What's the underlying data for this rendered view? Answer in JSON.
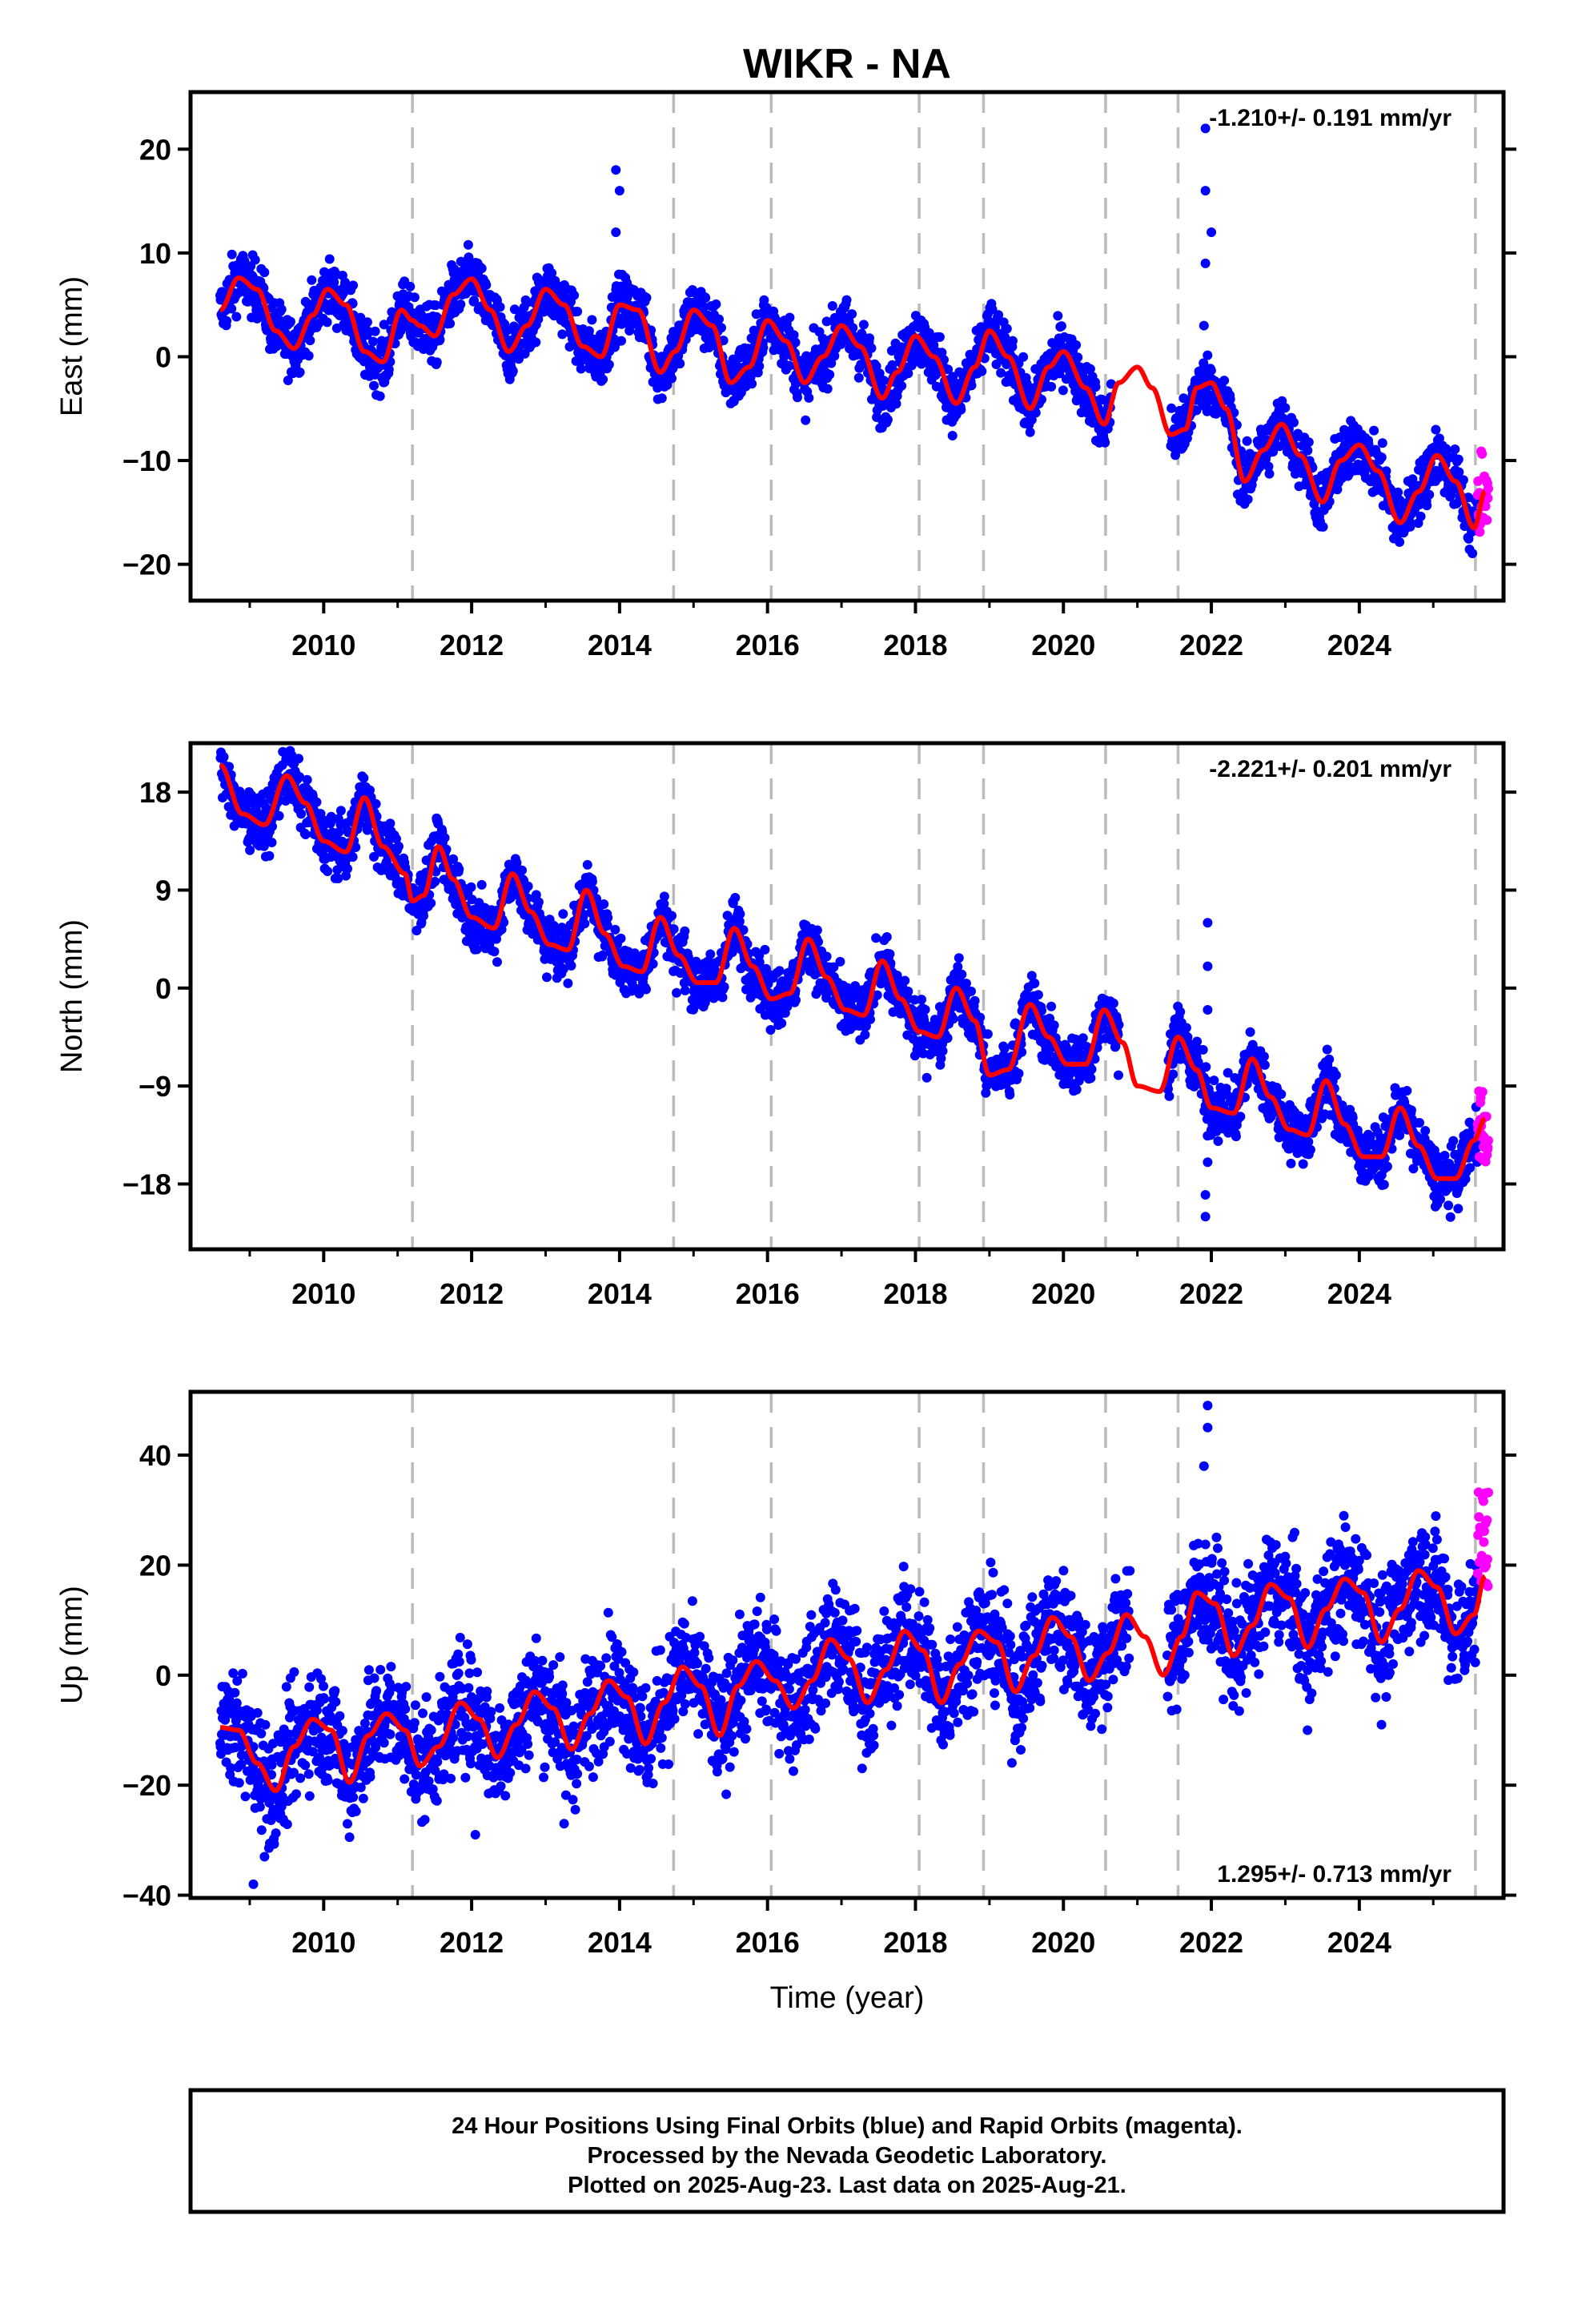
{
  "title": "WIKR - NA",
  "xlabel": "Time (year)",
  "colors": {
    "final": "#0000ff",
    "rapid": "#ff00ff",
    "model": "#ff0000",
    "steps": "#bbbbbb",
    "frame": "#000000"
  },
  "footer": [
    "24 Hour Positions Using Final Orbits (blue) and Rapid Orbits (magenta).",
    "Processed by the Nevada Geodetic Laboratory.",
    "Plotted on 2025-Aug-23. Last data on 2025-Aug-21."
  ],
  "chart_data": [
    {
      "type": "scatter",
      "ylabel": "East (mm)",
      "rate_label": "-1.210+/- 0.191 mm/yr",
      "xlim": [
        2008.2,
        2025.95
      ],
      "ylim": [
        -23.5,
        25.5
      ],
      "yticks": [
        -20,
        -10,
        0,
        10,
        20
      ],
      "xticks": [
        2010,
        2012,
        2014,
        2016,
        2018,
        2020,
        2022,
        2024
      ],
      "steps": [
        2011.2,
        2014.73,
        2016.05,
        2018.05,
        2018.92,
        2020.57,
        2021.55,
        2025.57
      ],
      "model": [
        [
          2008.6,
          4.5
        ],
        [
          2008.85,
          7.6
        ],
        [
          2009.1,
          6.5
        ],
        [
          2009.35,
          2.5
        ],
        [
          2009.6,
          0.8
        ],
        [
          2009.85,
          4
        ],
        [
          2010.05,
          6.5
        ],
        [
          2010.3,
          5
        ],
        [
          2010.55,
          0.5
        ],
        [
          2010.8,
          -0.5
        ],
        [
          2011.05,
          4.5
        ],
        [
          2011.2,
          3.5
        ],
        [
          2011.3,
          3
        ],
        [
          2011.5,
          2
        ],
        [
          2011.75,
          6
        ],
        [
          2012,
          7.5
        ],
        [
          2012.25,
          4.5
        ],
        [
          2012.5,
          0.5
        ],
        [
          2012.75,
          3
        ],
        [
          2013,
          6.5
        ],
        [
          2013.25,
          5
        ],
        [
          2013.5,
          1
        ],
        [
          2013.75,
          0
        ],
        [
          2014,
          5
        ],
        [
          2014.25,
          4.5
        ],
        [
          2014.55,
          -1.5
        ],
        [
          2014.75,
          0.5
        ],
        [
          2015,
          4.5
        ],
        [
          2015.25,
          3
        ],
        [
          2015.5,
          -2.5
        ],
        [
          2015.75,
          -1
        ],
        [
          2016,
          3.5
        ],
        [
          2016.25,
          1.5
        ],
        [
          2016.5,
          -2.5
        ],
        [
          2016.75,
          0
        ],
        [
          2017,
          3
        ],
        [
          2017.25,
          1
        ],
        [
          2017.55,
          -4
        ],
        [
          2017.75,
          -1.5
        ],
        [
          2018,
          2
        ],
        [
          2018.25,
          0
        ],
        [
          2018.55,
          -4.5
        ],
        [
          2018.8,
          -1
        ],
        [
          2019,
          2.5
        ],
        [
          2019.25,
          0
        ],
        [
          2019.55,
          -5
        ],
        [
          2019.8,
          -1
        ],
        [
          2020,
          0.5
        ],
        [
          2020.3,
          -3
        ],
        [
          2020.55,
          -6.5
        ],
        [
          2020.75,
          -2.5
        ],
        [
          2021,
          -1
        ],
        [
          2021.2,
          -3
        ],
        [
          2021.45,
          -7.5
        ],
        [
          2021.65,
          -7
        ],
        [
          2021.8,
          -3
        ],
        [
          2022,
          -2.5
        ],
        [
          2022.2,
          -5
        ],
        [
          2022.45,
          -12
        ],
        [
          2022.7,
          -9
        ],
        [
          2022.95,
          -6.5
        ],
        [
          2023.2,
          -9.5
        ],
        [
          2023.5,
          -14
        ],
        [
          2023.75,
          -10
        ],
        [
          2024,
          -8.5
        ],
        [
          2024.25,
          -11
        ],
        [
          2024.55,
          -16
        ],
        [
          2024.8,
          -13
        ],
        [
          2025.05,
          -9.5
        ],
        [
          2025.3,
          -12
        ],
        [
          2025.55,
          -16.5
        ],
        [
          2025.7,
          -13
        ]
      ],
      "anomalies": [
        [
          2013.95,
          18
        ],
        [
          2013.95,
          12
        ],
        [
          2014.0,
          16
        ],
        [
          2021.92,
          22
        ],
        [
          2021.92,
          16
        ],
        [
          2021.92,
          9
        ],
        [
          2021.9,
          3
        ],
        [
          2022.0,
          12
        ]
      ],
      "rapid": [
        2025.6,
        2025.75,
        -17,
        -9
      ]
    },
    {
      "type": "scatter",
      "ylabel": "North (mm)",
      "rate_label": "-2.221+/- 0.201 mm/yr",
      "xlim": [
        2008.2,
        2025.95
      ],
      "ylim": [
        -24,
        22.5
      ],
      "yticks": [
        -18,
        -9,
        0,
        9,
        18
      ],
      "xticks": [
        2010,
        2012,
        2014,
        2016,
        2018,
        2020,
        2022,
        2024
      ],
      "steps": [
        2011.2,
        2014.73,
        2016.05,
        2018.05,
        2018.92,
        2020.57,
        2021.55,
        2025.57
      ],
      "model": [
        [
          2008.6,
          20.5
        ],
        [
          2008.9,
          16
        ],
        [
          2009.2,
          15
        ],
        [
          2009.5,
          19.5
        ],
        [
          2009.75,
          17
        ],
        [
          2010,
          13.5
        ],
        [
          2010.3,
          12.5
        ],
        [
          2010.55,
          17.5
        ],
        [
          2010.8,
          13
        ],
        [
          2011.1,
          10.5
        ],
        [
          2011.2,
          8
        ],
        [
          2011.35,
          8.5
        ],
        [
          2011.55,
          13
        ],
        [
          2011.75,
          10
        ],
        [
          2012,
          6.5
        ],
        [
          2012.3,
          5.5
        ],
        [
          2012.55,
          10.5
        ],
        [
          2012.8,
          7
        ],
        [
          2013.05,
          4
        ],
        [
          2013.3,
          3.5
        ],
        [
          2013.55,
          9
        ],
        [
          2013.8,
          5
        ],
        [
          2014.05,
          2
        ],
        [
          2014.3,
          1.5
        ],
        [
          2014.55,
          6.5
        ],
        [
          2014.8,
          3
        ],
        [
          2015.05,
          0.5
        ],
        [
          2015.3,
          0.5
        ],
        [
          2015.55,
          5.5
        ],
        [
          2015.8,
          2
        ],
        [
          2016.05,
          -1
        ],
        [
          2016.3,
          -0.5
        ],
        [
          2016.55,
          4.5
        ],
        [
          2016.8,
          1
        ],
        [
          2017.05,
          -2
        ],
        [
          2017.3,
          -2.5
        ],
        [
          2017.55,
          2.5
        ],
        [
          2017.8,
          -1
        ],
        [
          2018.05,
          -4
        ],
        [
          2018.3,
          -4.5
        ],
        [
          2018.55,
          0
        ],
        [
          2018.8,
          -3
        ],
        [
          2019,
          -8
        ],
        [
          2019.25,
          -7.5
        ],
        [
          2019.55,
          -1.5
        ],
        [
          2019.8,
          -4.5
        ],
        [
          2020.05,
          -7
        ],
        [
          2020.3,
          -7
        ],
        [
          2020.55,
          -2
        ],
        [
          2020.8,
          -5
        ],
        [
          2021,
          -9
        ],
        [
          2021.3,
          -9.5
        ],
        [
          2021.55,
          -4.5
        ],
        [
          2021.8,
          -7.5
        ],
        [
          2022,
          -11
        ],
        [
          2022.3,
          -11.5
        ],
        [
          2022.55,
          -6.5
        ],
        [
          2022.8,
          -10
        ],
        [
          2023.05,
          -13
        ],
        [
          2023.3,
          -13.5
        ],
        [
          2023.55,
          -8.5
        ],
        [
          2023.8,
          -12.5
        ],
        [
          2024.05,
          -15.5
        ],
        [
          2024.3,
          -15.5
        ],
        [
          2024.55,
          -11
        ],
        [
          2024.8,
          -14.5
        ],
        [
          2025.05,
          -17.5
        ],
        [
          2025.3,
          -17.5
        ],
        [
          2025.55,
          -14
        ],
        [
          2025.7,
          -12
        ]
      ],
      "anomalies": [
        [
          2021.95,
          6
        ],
        [
          2021.95,
          2
        ],
        [
          2021.95,
          -2
        ],
        [
          2021.92,
          -19
        ],
        [
          2021.92,
          -21
        ],
        [
          2021.95,
          -16
        ]
      ],
      "rapid": [
        2025.6,
        2025.75,
        -16,
        -9
      ]
    },
    {
      "type": "scatter",
      "ylabel": "Up (mm)",
      "rate_label": "1.295+/- 0.713 mm/yr",
      "xlim": [
        2008.2,
        2025.95
      ],
      "ylim": [
        -40.5,
        51.5
      ],
      "yticks": [
        -40,
        -20,
        0,
        20,
        40
      ],
      "xticks": [
        2010,
        2012,
        2014,
        2016,
        2018,
        2020,
        2022,
        2024
      ],
      "steps": [
        2011.2,
        2014.73,
        2016.05,
        2018.05,
        2018.92,
        2020.57,
        2021.55,
        2025.57
      ],
      "model": [
        [
          2008.6,
          -9.5
        ],
        [
          2008.85,
          -10
        ],
        [
          2009.1,
          -16
        ],
        [
          2009.35,
          -21
        ],
        [
          2009.6,
          -13
        ],
        [
          2009.85,
          -8
        ],
        [
          2010.1,
          -10
        ],
        [
          2010.35,
          -19.5
        ],
        [
          2010.6,
          -11
        ],
        [
          2010.85,
          -7
        ],
        [
          2011.1,
          -10
        ],
        [
          2011.3,
          -16.5
        ],
        [
          2011.55,
          -13
        ],
        [
          2011.85,
          -5
        ],
        [
          2012.1,
          -8
        ],
        [
          2012.35,
          -15
        ],
        [
          2012.6,
          -9
        ],
        [
          2012.85,
          -3
        ],
        [
          2013.1,
          -6
        ],
        [
          2013.35,
          -13.5
        ],
        [
          2013.6,
          -7
        ],
        [
          2013.85,
          -1
        ],
        [
          2014.1,
          -4
        ],
        [
          2014.35,
          -12.5
        ],
        [
          2014.6,
          -5
        ],
        [
          2014.85,
          1.5
        ],
        [
          2015.1,
          -2
        ],
        [
          2015.35,
          -11
        ],
        [
          2015.6,
          -2
        ],
        [
          2015.85,
          2.5
        ],
        [
          2016.1,
          -1
        ],
        [
          2016.35,
          -6
        ],
        [
          2016.6,
          -1
        ],
        [
          2016.85,
          6.5
        ],
        [
          2017.1,
          3
        ],
        [
          2017.35,
          -5
        ],
        [
          2017.6,
          1
        ],
        [
          2017.85,
          8
        ],
        [
          2018.1,
          4.5
        ],
        [
          2018.35,
          -5
        ],
        [
          2018.6,
          2
        ],
        [
          2018.85,
          8
        ],
        [
          2019.1,
          6
        ],
        [
          2019.35,
          -3
        ],
        [
          2019.6,
          3.5
        ],
        [
          2019.85,
          10.5
        ],
        [
          2020.1,
          7
        ],
        [
          2020.35,
          -1
        ],
        [
          2020.6,
          4
        ],
        [
          2020.85,
          11
        ],
        [
          2021.1,
          7
        ],
        [
          2021.35,
          0
        ],
        [
          2021.6,
          7
        ],
        [
          2021.8,
          15
        ],
        [
          2022.05,
          13
        ],
        [
          2022.3,
          3.5
        ],
        [
          2022.55,
          9
        ],
        [
          2022.8,
          16.5
        ],
        [
          2023.05,
          14
        ],
        [
          2023.3,
          5
        ],
        [
          2023.55,
          12
        ],
        [
          2023.8,
          17.5
        ],
        [
          2024.05,
          15
        ],
        [
          2024.3,
          6
        ],
        [
          2024.55,
          12
        ],
        [
          2024.8,
          19
        ],
        [
          2025.05,
          16
        ],
        [
          2025.3,
          7.5
        ],
        [
          2025.55,
          11
        ],
        [
          2025.7,
          18
        ]
      ],
      "anomalies": [
        [
          2021.95,
          49
        ],
        [
          2021.95,
          45
        ],
        [
          2021.9,
          38
        ],
        [
          2009.05,
          -38
        ],
        [
          2009.2,
          -33
        ],
        [
          2012.05,
          -29
        ],
        [
          2013.25,
          -27
        ],
        [
          2023.3,
          -10
        ],
        [
          2024.3,
          -9
        ]
      ],
      "rapid": [
        2025.6,
        2025.75,
        13,
        34
      ]
    }
  ]
}
